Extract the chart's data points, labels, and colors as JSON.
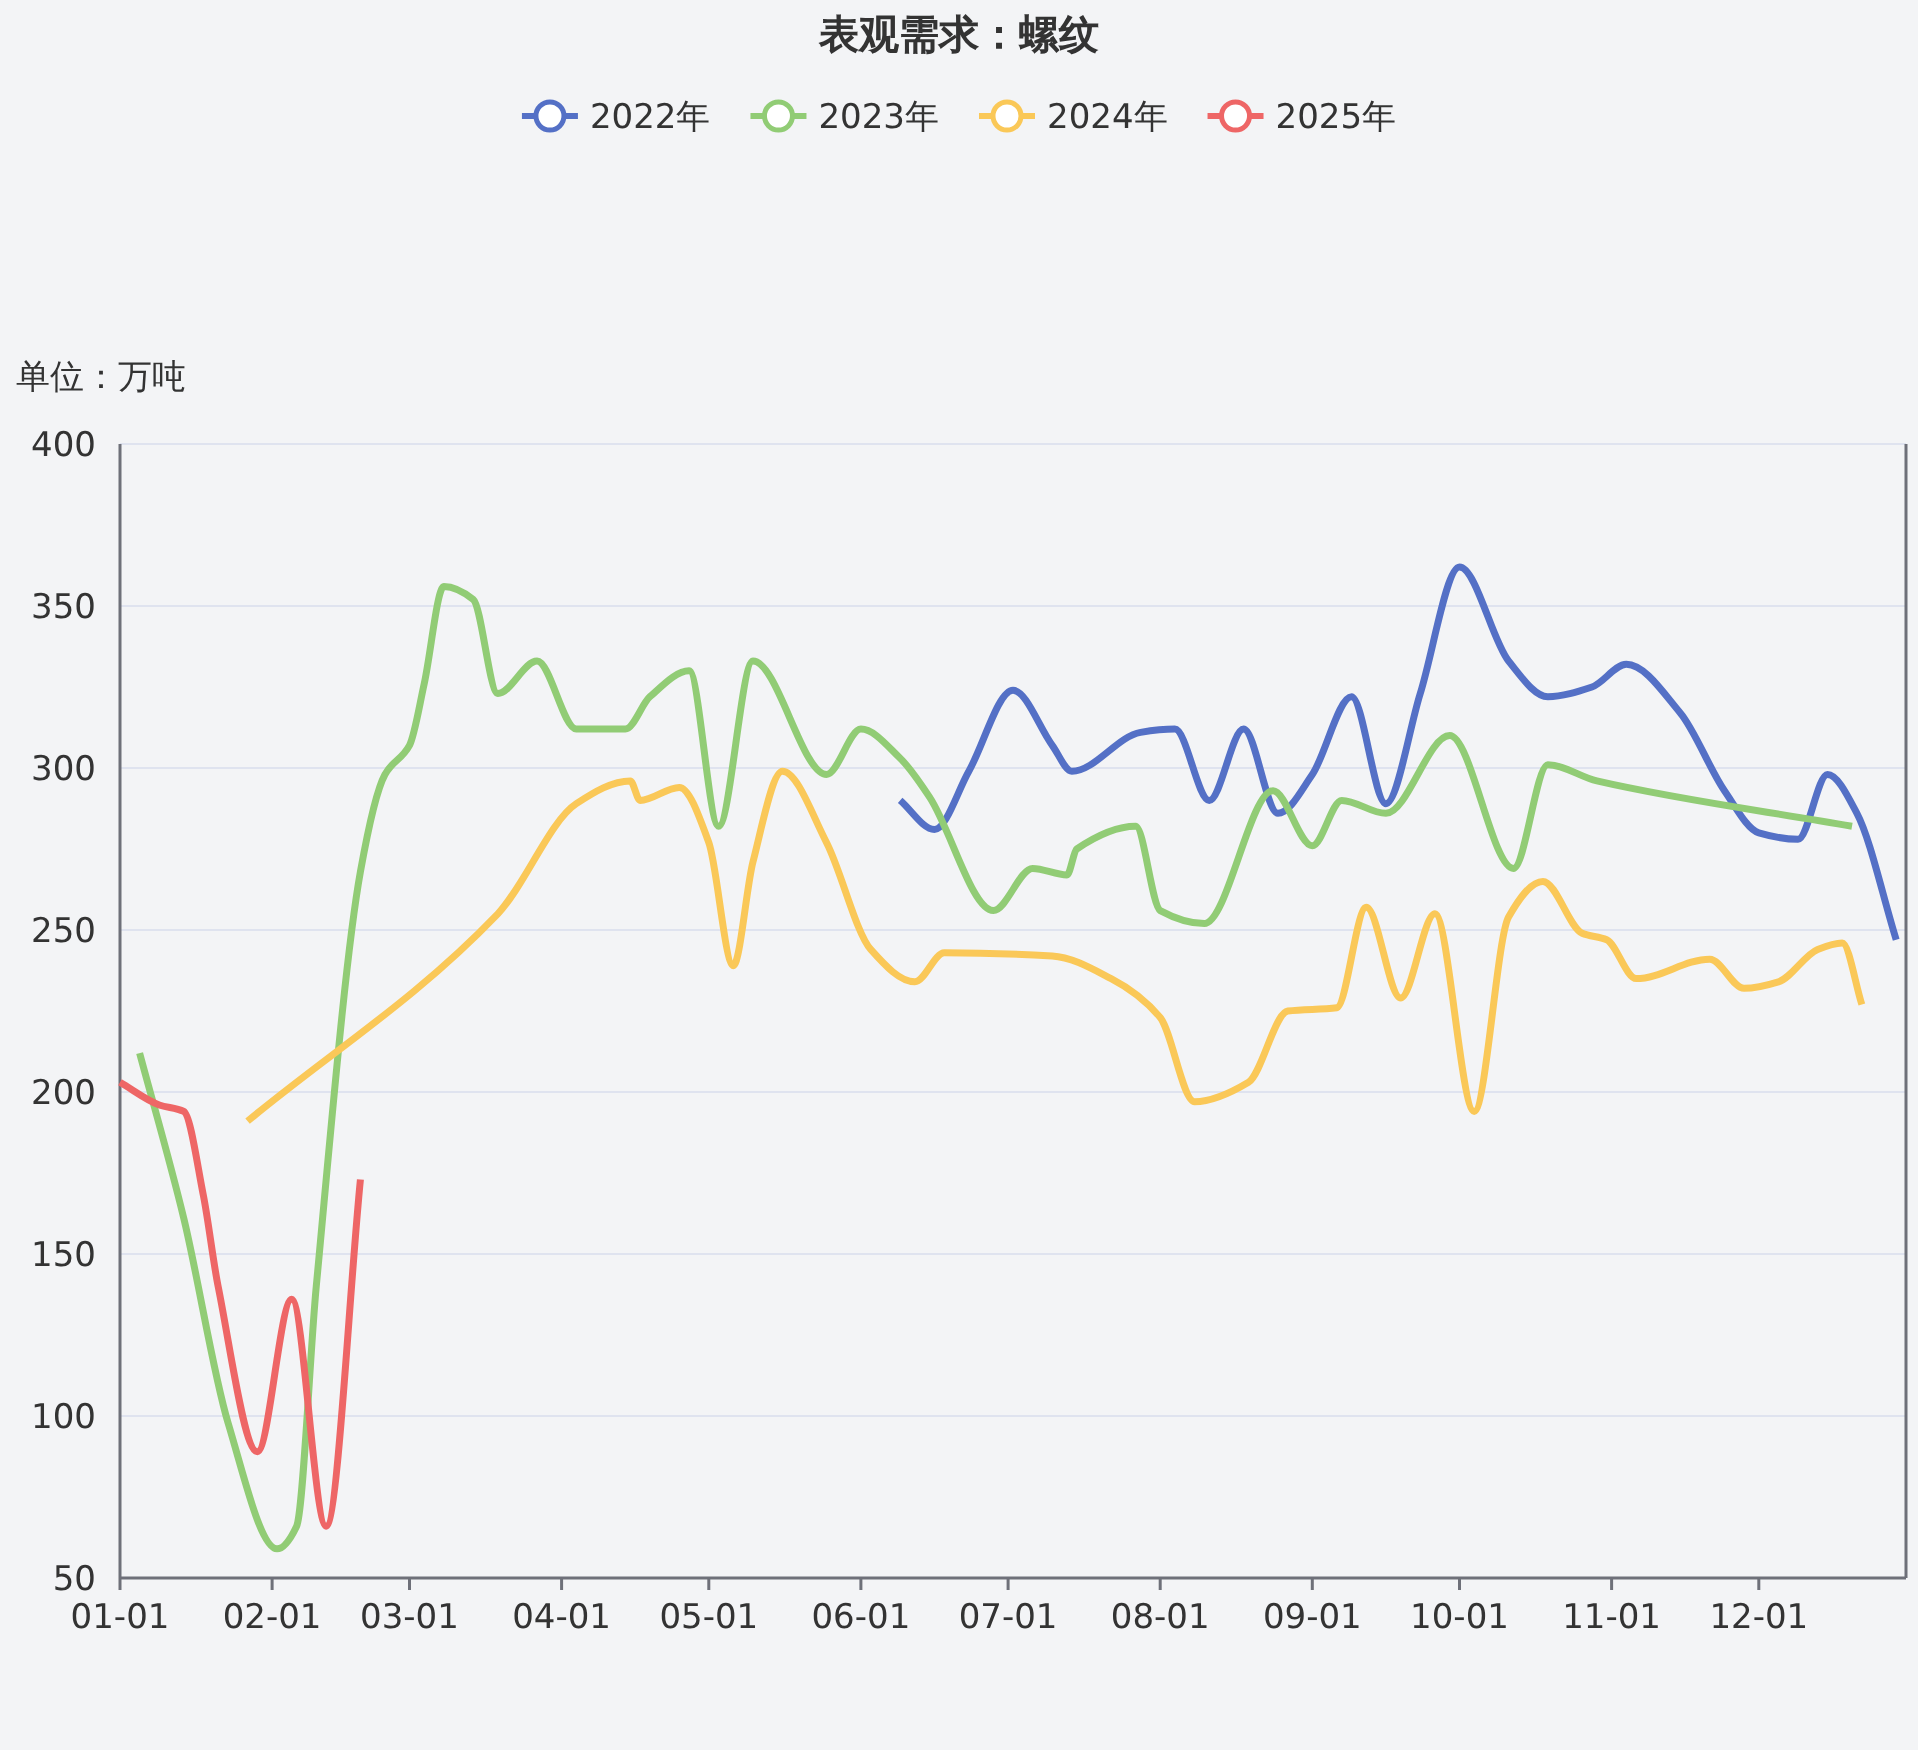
{
  "chart_data": {
    "type": "line",
    "title": "表观需求：螺纹",
    "ylabel": "单位：万吨",
    "legend": "top",
    "grid": "y",
    "marker": "none",
    "line_style": "solid",
    "xlim": [
      "--01-01",
      "--12-31"
    ],
    "xticks": [
      {
        "value": "--01-01",
        "label": "01-01"
      },
      {
        "value": "--02-01",
        "label": "02-01"
      },
      {
        "value": "--03-01",
        "label": "03-01"
      },
      {
        "value": "--04-01",
        "label": "04-01"
      },
      {
        "value": "--05-01",
        "label": "05-01"
      },
      {
        "value": "--06-01",
        "label": "06-01"
      },
      {
        "value": "--07-01",
        "label": "07-01"
      },
      {
        "value": "--08-01",
        "label": "08-01"
      },
      {
        "value": "--09-01",
        "label": "09-01"
      },
      {
        "value": "--10-01",
        "label": "10-01"
      },
      {
        "value": "--11-01",
        "label": "11-01"
      },
      {
        "value": "--12-01",
        "label": "12-01"
      }
    ],
    "ylim": [
      50,
      400
    ],
    "yticks": [
      50,
      100,
      150,
      200,
      250,
      300,
      350,
      400
    ],
    "series": [
      {
        "name": "2022年",
        "color": "#5470c6",
        "x": [
          "--06-09",
          "--06-16",
          "--06-23",
          "--07-02",
          "--07-10",
          "--07-14",
          "--07-28",
          "--08-04",
          "--08-11",
          "--08-18",
          "--08-25",
          "--09-01",
          "--09-09",
          "--09-16",
          "--09-23",
          "--10-01",
          "--10-11",
          "--10-19",
          "--10-28",
          "--11-04",
          "--11-15",
          "--11-24",
          "--12-01",
          "--12-09",
          "--12-15",
          "--12-21",
          "--12-29"
        ],
        "values": [
          290,
          281,
          299,
          324,
          307,
          299,
          311,
          312,
          290,
          312,
          286,
          298,
          322,
          289,
          323,
          362,
          333,
          322,
          325,
          332,
          317,
          293,
          280,
          278,
          298,
          286,
          247
        ]
      },
      {
        "name": "2023年",
        "color": "#91cc75",
        "x": [
          "--01-05",
          "--01-14",
          "--01-23",
          "--02-02",
          "--02-06",
          "--02-10",
          "--02-19",
          "--02-24",
          "--03-01",
          "--03-04",
          "--03-08",
          "--03-14",
          "--03-19",
          "--03-27",
          "--04-04",
          "--04-14",
          "--04-19",
          "--04-27",
          "--05-03",
          "--05-10",
          "--05-25",
          "--06-01",
          "--06-09",
          "--06-15",
          "--06-28",
          "--07-06",
          "--07-13",
          "--07-15",
          "--07-27",
          "--08-01",
          "--08-10",
          "--08-24",
          "--09-01",
          "--09-07",
          "--09-16",
          "--09-29",
          "--10-12",
          "--10-19",
          "--10-29",
          "--12-20"
        ],
        "values": [
          212,
          161,
          98,
          59,
          66,
          140,
          268,
          298,
          307,
          326,
          356,
          352,
          323,
          333,
          312,
          312,
          322,
          330,
          282,
          333,
          298,
          312,
          303,
          291,
          256,
          269,
          267,
          275,
          282,
          256,
          252,
          293,
          276,
          290,
          286,
          310,
          269,
          301,
          296,
          282
        ]
      },
      {
        "name": "2024年",
        "color": "#fac858",
        "x": [
          "--01-27",
          "--03-19",
          "--04-04",
          "--04-15",
          "--04-17",
          "--04-25",
          "--05-01",
          "--05-06",
          "--05-10",
          "--05-16",
          "--05-25",
          "--06-03",
          "--06-12",
          "--06-18",
          "--07-10",
          "--07-22",
          "--08-01",
          "--08-08",
          "--08-19",
          "--08-27",
          "--09-06",
          "--09-12",
          "--09-19",
          "--09-26",
          "--10-04",
          "--10-11",
          "--10-18",
          "--10-26",
          "--10-31",
          "--11-06",
          "--11-21",
          "--11-28",
          "--12-05",
          "--12-13",
          "--12-18",
          "--12-22"
        ],
        "values": [
          191,
          255,
          289,
          296,
          290,
          294,
          277,
          239,
          271,
          299,
          277,
          244,
          234,
          243,
          242,
          235,
          223,
          197,
          203,
          225,
          226,
          257,
          229,
          255,
          194,
          254,
          265,
          249,
          247,
          235,
          241,
          232,
          234,
          244,
          246,
          227
        ]
      },
      {
        "name": "2025年",
        "color": "#ee6666",
        "x": [
          "--01-01",
          "--01-09",
          "--01-14",
          "--01-18",
          "--01-21",
          "--01-29",
          "--02-05",
          "--02-12",
          "--02-19"
        ],
        "values": [
          203,
          196,
          194,
          168,
          140,
          89,
          136,
          66,
          173
        ]
      }
    ]
  }
}
